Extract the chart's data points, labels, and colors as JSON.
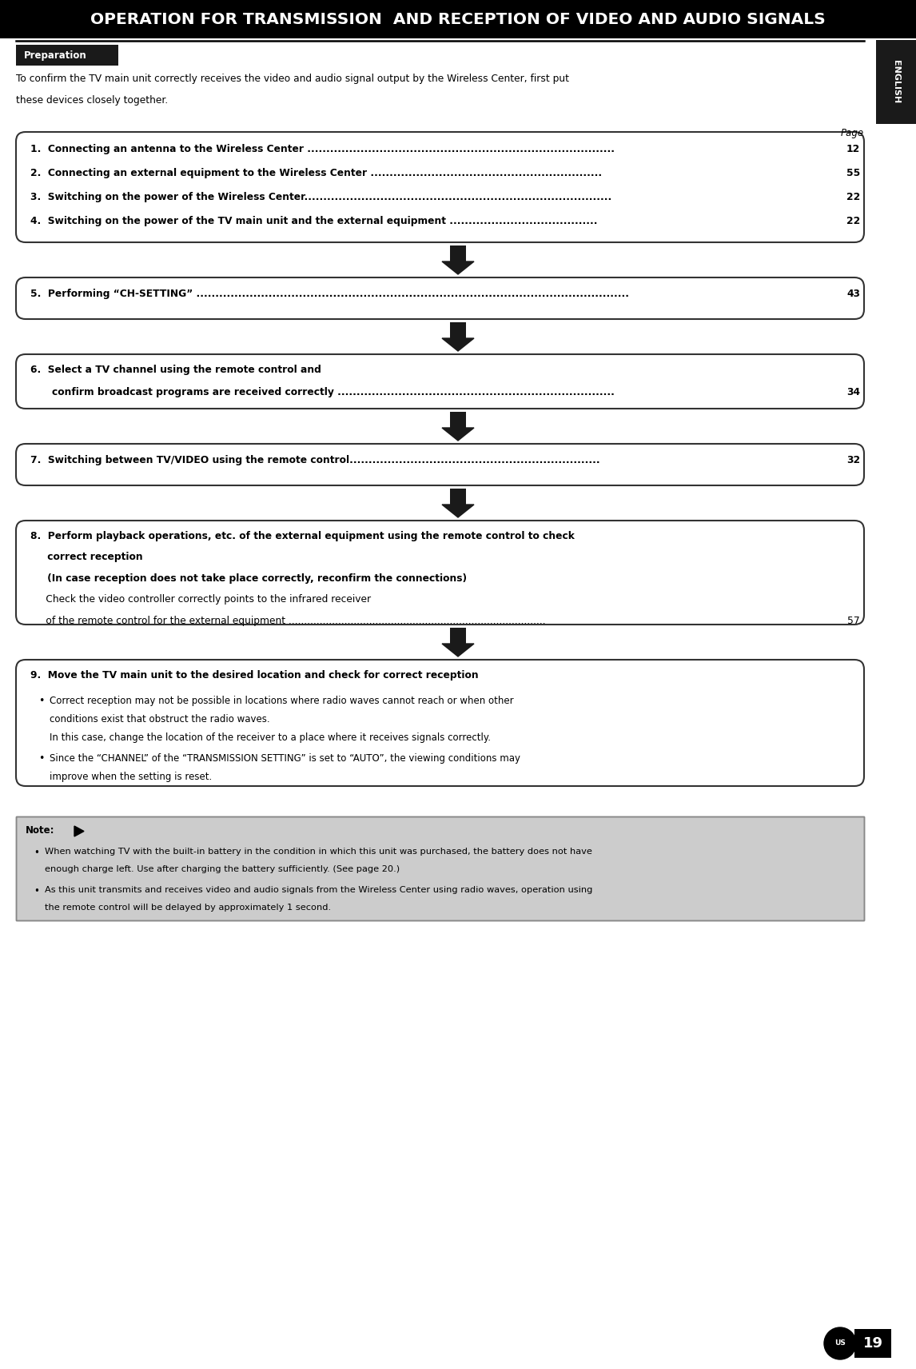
{
  "title": "OPERATION FOR TRANSMISSION  AND RECEPTION OF VIDEO AND AUDIO SIGNALS",
  "preparation_label": "Preparation",
  "intro_text1": "To confirm the TV main unit correctly receives the video and audio signal output by the Wireless Center, first put",
  "intro_text2": "these devices closely together.",
  "page_label": "Page",
  "english_label": "ENGLISH",
  "page_number": "19",
  "us_label": "US",
  "box1_items": [
    {
      "num": "1.",
      "text": "Connecting an antenna to the Wireless Center .................................................................................",
      "page": "12"
    },
    {
      "num": "2.",
      "text": "Connecting an external equipment to the Wireless Center .............................................................",
      "page": "55"
    },
    {
      "num": "3.",
      "text": "Switching on the power of the Wireless Center.................................................................................",
      "page": "22"
    },
    {
      "num": "4.",
      "text": "Switching on the power of the TV main unit and the external equipment .......................................",
      "page": "22"
    }
  ],
  "box2_num": "5.",
  "box2_text": "Performing “CH-SETTING” ..................................................................................................................",
  "box2_page": "43",
  "box3_num": "6.",
  "box3_line1": "Select a TV channel using the remote control and",
  "box3_line2": "confirm broadcast programs are received correctly .........................................................................",
  "box3_page": "34",
  "box4_num": "7.",
  "box4_text": "Switching between TV/VIDEO using the remote control..................................................................",
  "box4_page": "32",
  "box5_line1": "8.  Perform playback operations, etc. of the external equipment using the remote control to check",
  "box5_line2": "     correct reception",
  "box5_line3": "     (In case reception does not take place correctly, reconfirm the connections)",
  "box5_line4": "     Check the video controller correctly points to the infrared receiver",
  "box5_line5": "     of the remote control for the external equipment ...................................................................................",
  "box5_page": "57",
  "box6_header": "9.  Move the TV main unit to the desired location and check for correct reception",
  "box6_b1_l1": "Correct reception may not be possible in locations where radio waves cannot reach or when other",
  "box6_b1_l2": "conditions exist that obstruct the radio waves.",
  "box6_b1_l3": "In this case, change the location of the receiver to a place where it receives signals correctly.",
  "box6_b2_l1": "Since the “CHANNEL” of the “TRANSMISSION SETTING” is set to “AUTO”, the viewing conditions may",
  "box6_b2_l2": "improve when the setting is reset.",
  "note_label": "Note:",
  "note_b1_l1": "When watching TV with the built-in battery in the condition in which this unit was purchased, the battery does not have",
  "note_b1_l2": "enough charge left. Use after charging the battery sufficiently. (See page 20.)",
  "note_b2_l1": "As this unit transmits and receives video and audio signals from the Wireless Center using radio waves, operation using",
  "note_b2_l2": "the remote control will be delayed by approximately 1 second.",
  "note_bold_word": "20.",
  "bg_color": "#ffffff",
  "title_bg": "#000000",
  "title_color": "#ffffff",
  "prep_bg": "#1a1a1a",
  "prep_color": "#ffffff",
  "english_bg": "#1a1a1a",
  "english_color": "#ffffff",
  "note_bg": "#cccccc",
  "box_edge": "#333333",
  "arrow_color": "#1a1a1a"
}
